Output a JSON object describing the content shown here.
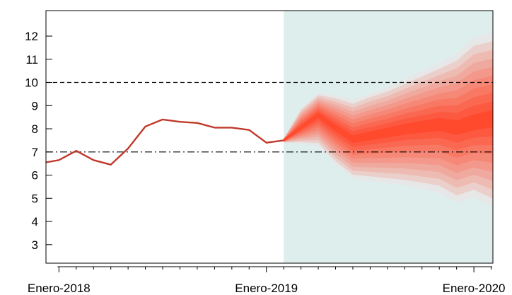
{
  "chart_data": {
    "type": "fan-line",
    "y_axis": {
      "ylim": [
        2.2,
        13.1
      ],
      "ticks": [
        3,
        4,
        5,
        6,
        7,
        8,
        9,
        10,
        11,
        12
      ]
    },
    "x_axis": {
      "labels": [
        {
          "text": "Enero-2018",
          "month_index": 1
        },
        {
          "text": "Enero-2019",
          "month_index": 13
        },
        {
          "text": "Enero-2020",
          "month_index": 25
        }
      ],
      "minor_ticks_monthly": true,
      "xlim": [
        0.25,
        26.1
      ]
    },
    "reference_lines": [
      {
        "y": 10,
        "style": "dashed"
      },
      {
        "y": 7,
        "style": "dashdot"
      }
    ],
    "history": {
      "color": "#c0392b",
      "x": [
        0.25,
        1,
        2,
        3,
        4,
        5,
        6,
        7,
        8,
        9,
        10,
        11,
        12,
        13,
        13.5,
        14
      ],
      "y": [
        6.55,
        6.65,
        7.05,
        6.65,
        6.45,
        7.15,
        8.1,
        8.4,
        8.3,
        8.25,
        8.05,
        8.05,
        7.95,
        7.4,
        7.45,
        7.5
      ]
    },
    "forecast_region": {
      "x_start": 14,
      "x_end": 26.1,
      "color": "#deeeed"
    },
    "forecast": {
      "x": [
        14,
        15,
        16,
        17,
        18,
        19,
        20,
        21,
        22,
        23,
        24,
        25,
        26.1
      ],
      "median": [
        7.5,
        8.05,
        8.6,
        8.05,
        7.55,
        7.7,
        7.85,
        8.0,
        8.1,
        8.2,
        8.05,
        8.25,
        8.45
      ],
      "upper": [
        7.6,
        8.9,
        9.55,
        9.45,
        9.25,
        9.55,
        9.8,
        10.15,
        10.5,
        10.85,
        11.25,
        11.95,
        12.15
      ],
      "lower": [
        7.4,
        7.35,
        7.25,
        6.45,
        5.85,
        5.75,
        5.65,
        5.55,
        5.4,
        5.25,
        4.8,
        5.05,
        4.6
      ],
      "band_levels": 10,
      "color_inner": "#ff4a2e",
      "color_outer": "#e7e7e7"
    }
  }
}
